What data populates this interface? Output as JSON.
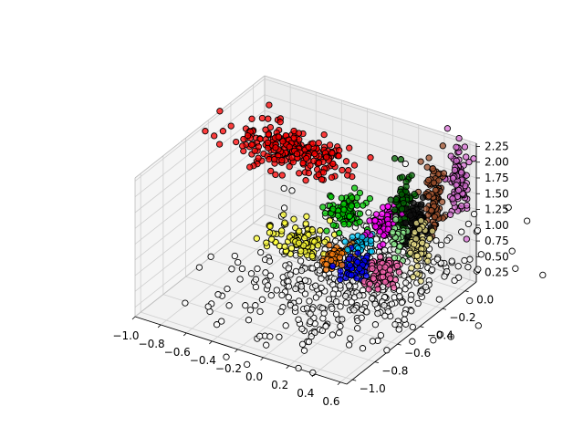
{
  "chart_data": {
    "type": "scatter",
    "projection": "3d",
    "title": "",
    "xlabel": "",
    "ylabel": "",
    "zlabel": "",
    "grid": true,
    "legend": "none",
    "xlim": [
      -1.0,
      0.65
    ],
    "ylim": [
      -1.05,
      0.1
    ],
    "zlim": [
      0.1,
      2.3
    ],
    "x_ticks": [
      -1.0,
      -0.8,
      -0.6,
      -0.4,
      -0.2,
      0.0,
      0.2,
      0.4,
      0.6
    ],
    "x_tick_labels": [
      "−1.0",
      "−0.8",
      "−0.6",
      "−0.4",
      "−0.2",
      "0.0",
      "0.2",
      "0.4",
      "0.6"
    ],
    "y_ticks": [
      -1.0,
      -0.8,
      -0.6,
      -0.4,
      -0.2,
      0.0
    ],
    "y_tick_labels": [
      "−1.0",
      "−0.8",
      "−0.6",
      "−0.4",
      "−0.2",
      "0.0"
    ],
    "z_ticks": [
      0.25,
      0.5,
      0.75,
      1.0,
      1.25,
      1.5,
      1.75,
      2.0,
      2.25
    ],
    "z_tick_labels": [
      "0.25",
      "0.50",
      "0.75",
      "1.00",
      "1.25",
      "1.50",
      "1.75",
      "2.00",
      "2.25"
    ],
    "marker_edge_color": "#000000",
    "clusters": [
      {
        "color": "#ffffff",
        "center": [
          0.1,
          -0.35,
          0.45
        ],
        "spread": [
          0.35,
          0.35,
          0.15
        ],
        "count": 520
      },
      {
        "color": "#ff0000",
        "center": [
          -0.65,
          -0.05,
          1.55
        ],
        "spread": [
          0.25,
          0.08,
          0.1
        ],
        "count": 240
      },
      {
        "color": "#ffff33",
        "center": [
          -0.25,
          -0.45,
          1.0
        ],
        "spread": [
          0.1,
          0.06,
          0.1
        ],
        "count": 90
      },
      {
        "color": "#00cc00",
        "center": [
          -0.05,
          -0.25,
          1.25
        ],
        "spread": [
          0.07,
          0.05,
          0.1
        ],
        "count": 80
      },
      {
        "color": "#ff7f0e",
        "center": [
          0.05,
          -0.45,
          0.9
        ],
        "spread": [
          0.05,
          0.05,
          0.08
        ],
        "count": 45
      },
      {
        "color": "#00ccff",
        "center": [
          0.12,
          -0.35,
          1.0
        ],
        "spread": [
          0.04,
          0.04,
          0.08
        ],
        "count": 30
      },
      {
        "color": "#0000ff",
        "center": [
          0.2,
          -0.45,
          0.85
        ],
        "spread": [
          0.05,
          0.05,
          0.08
        ],
        "count": 60
      },
      {
        "color": "#ff00ff",
        "center": [
          0.25,
          -0.25,
          1.25
        ],
        "spread": [
          0.05,
          0.05,
          0.1
        ],
        "count": 70
      },
      {
        "color": "#ff69b4",
        "center": [
          0.4,
          -0.45,
          0.85
        ],
        "spread": [
          0.05,
          0.05,
          0.1
        ],
        "count": 90
      },
      {
        "color": "#006400",
        "center": [
          0.35,
          -0.2,
          1.5
        ],
        "spread": [
          0.03,
          0.03,
          0.3
        ],
        "count": 80
      },
      {
        "color": "#111111",
        "center": [
          0.45,
          -0.2,
          1.3
        ],
        "spread": [
          0.03,
          0.03,
          0.15
        ],
        "count": 120
      },
      {
        "color": "#a0522d",
        "center": [
          0.5,
          -0.1,
          1.65
        ],
        "spread": [
          0.03,
          0.03,
          0.28
        ],
        "count": 90
      },
      {
        "color": "#da70d6",
        "center": [
          0.6,
          0.0,
          1.75
        ],
        "spread": [
          0.03,
          0.03,
          0.25
        ],
        "count": 110
      },
      {
        "color": "#f0e68c",
        "center": [
          0.55,
          -0.3,
          1.15
        ],
        "spread": [
          0.03,
          0.03,
          0.18
        ],
        "count": 60
      },
      {
        "color": "#90ee90",
        "center": [
          0.4,
          -0.3,
          1.2
        ],
        "spread": [
          0.03,
          0.03,
          0.15
        ],
        "count": 30
      }
    ]
  }
}
